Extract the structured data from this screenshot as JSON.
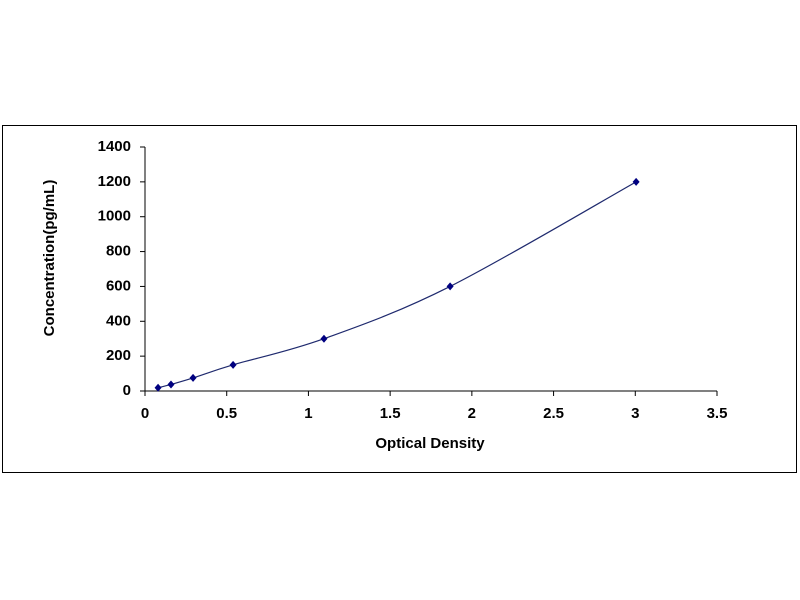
{
  "chart_data": {
    "type": "scatter",
    "xlabel": "Optical Density",
    "ylabel": "Concentration(pg/mL)",
    "x": [
      0.08,
      0.159,
      0.294,
      0.539,
      1.095,
      1.867,
      3.005
    ],
    "values": [
      18.75,
      37.5,
      75,
      150,
      300,
      600,
      1200
    ],
    "color": "#000080",
    "line_color": "#1f2a6e",
    "smooth": true,
    "xlim": [
      0,
      3.5
    ],
    "xticks": [
      0,
      0.5,
      1,
      1.5,
      2,
      2.5,
      3,
      3.5
    ],
    "ylim": [
      0,
      1400
    ],
    "yticks": [
      0,
      200,
      400,
      600,
      800,
      1000,
      1200,
      1400
    ],
    "grid": false
  }
}
